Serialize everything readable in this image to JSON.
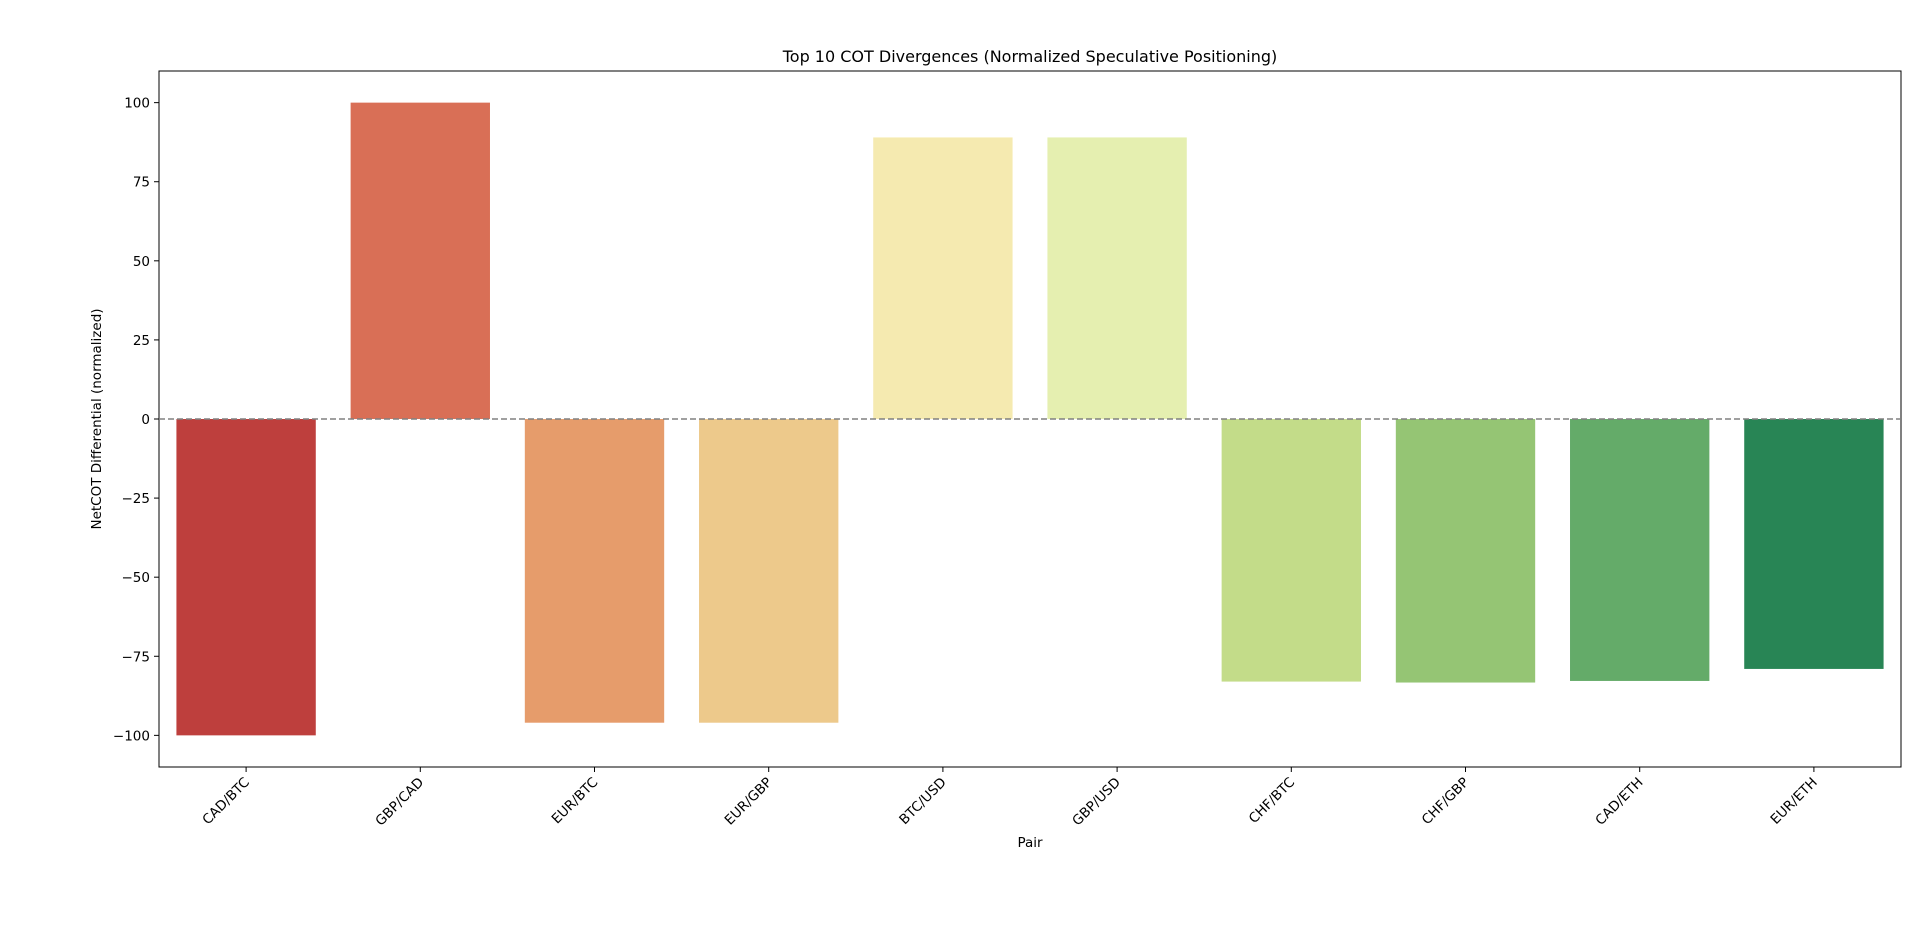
{
  "chart_data": {
    "type": "bar",
    "title": "Top 10 COT Divergences (Normalized Speculative Positioning)",
    "xlabel": "Pair",
    "ylabel": "NetCOT Differential (normalized)",
    "categories": [
      "CAD/BTC",
      "GBP/CAD",
      "EUR/BTC",
      "EUR/GBP",
      "BTC/USD",
      "GBP/USD",
      "CHF/BTC",
      "CHF/GBP",
      "CAD/ETH",
      "EUR/ETH"
    ],
    "values": [
      -100,
      100,
      -96,
      -96,
      89,
      89,
      -83,
      -83.3,
      -82.8,
      -79
    ],
    "colors": [
      "#be3f3d",
      "#d96f56",
      "#e69c6b",
      "#edc98b",
      "#f5eab0",
      "#e5efb0",
      "#c3dc89",
      "#95c574",
      "#64ab69",
      "#288555"
    ],
    "ylim": [
      -110,
      110
    ],
    "yticks": [
      -100,
      -75,
      -50,
      -25,
      0,
      25,
      50,
      75,
      100
    ],
    "ytick_labels": [
      "−100",
      "−75",
      "−50",
      "−25",
      "0",
      "25",
      "50",
      "75",
      "100"
    ],
    "reference_line": {
      "value": 0,
      "style": "dashed",
      "color": "#808080"
    },
    "grid": false
  }
}
